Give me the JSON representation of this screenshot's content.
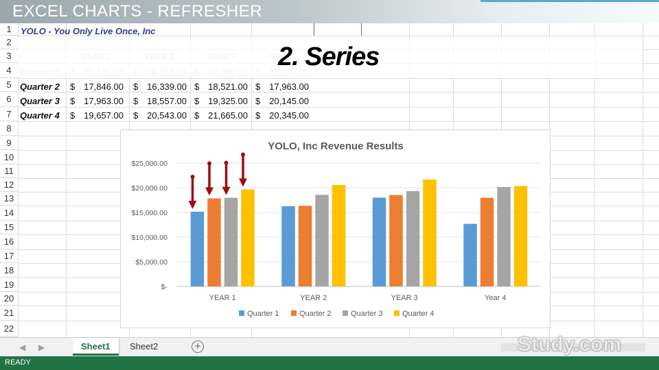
{
  "video_title": "EXCEL CHARTS - REFRESHER",
  "slide_overlay": "2. Series",
  "sheet": {
    "row_numbers": [
      "1",
      "2",
      "3",
      "4",
      "5",
      "6",
      "7",
      "8",
      "9",
      "10",
      "11",
      "12",
      "13",
      "14",
      "15",
      "16",
      "17",
      "18",
      "19",
      "20",
      "21",
      "22"
    ],
    "title_cell": "YOLO - You Only Live Once, Inc",
    "year_headers": [
      "YEAR 1",
      "YEAR 2",
      "YEAR 3",
      "YEAR 4"
    ],
    "currency_symbol": "$",
    "rows": [
      {
        "label": "Quarter 1",
        "values": [
          "15,145.00",
          "16,256.00",
          "17,989.00",
          "12,687.00"
        ]
      },
      {
        "label": "Quarter 2",
        "values": [
          "17,846.00",
          "16,339.00",
          "18,521.00",
          "17,963.00"
        ]
      },
      {
        "label": "Quarter 3",
        "values": [
          "17,963.00",
          "18,557.00",
          "19,325.00",
          "20,145.00"
        ]
      },
      {
        "label": "Quarter 4",
        "values": [
          "19,657.00",
          "20,543.00",
          "21,665.00",
          "20,345.00"
        ]
      }
    ]
  },
  "chart_data": {
    "type": "bar",
    "title": "YOLO, Inc  Revenue Results",
    "categories": [
      "YEAR 1",
      "YEAR 2",
      "YEAR 3",
      "Year 4"
    ],
    "series": [
      {
        "name": "Quarter 1",
        "color": "#5b9bd5",
        "values": [
          15145,
          16256,
          17989,
          12687
        ]
      },
      {
        "name": "Quarter 2",
        "color": "#ed7d31",
        "values": [
          17846,
          16339,
          18521,
          17963
        ]
      },
      {
        "name": "Quarter 3",
        "color": "#a5a5a5",
        "values": [
          17963,
          18557,
          19325,
          20145
        ]
      },
      {
        "name": "Quarter 4",
        "color": "#ffc000",
        "values": [
          19657,
          20543,
          21665,
          20345
        ]
      }
    ],
    "y_ticks": [
      "$-",
      "$5,000.00",
      "$10,000.00",
      "$15,000.00",
      "$20,000.00",
      "$25,000.00"
    ],
    "ylim": [
      0,
      25000
    ],
    "grid": true,
    "legend_position": "bottom",
    "annotation": "red arrows pointing at each YEAR 1 bar",
    "arrow_color": "#9b0d13"
  },
  "tabs": [
    {
      "label": "Sheet1",
      "active": true
    },
    {
      "label": "Sheet2",
      "active": false
    }
  ],
  "add_sheet_symbol": "+",
  "status": "READY",
  "watermark": "Study.com"
}
